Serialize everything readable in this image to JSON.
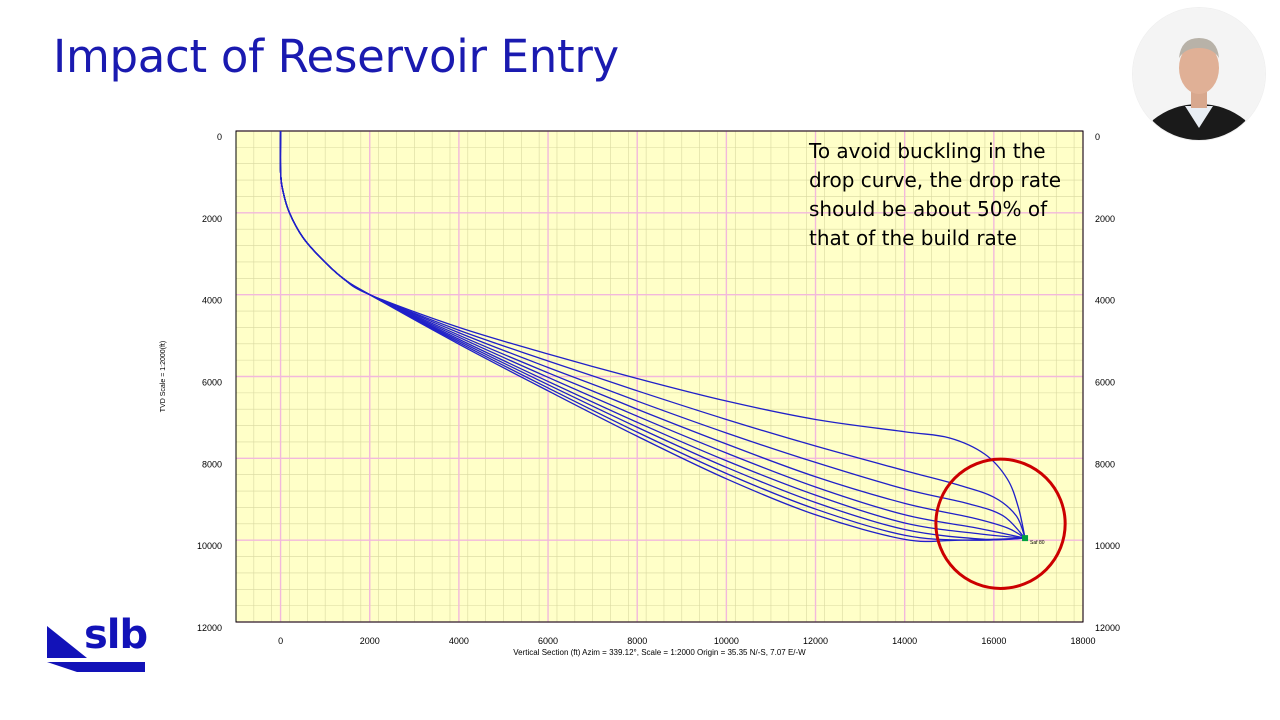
{
  "slide": {
    "title": "Impact of Reservoir Entry",
    "annotation_lines": [
      "To avoid buckling in the",
      "drop curve, the drop rate",
      "should be about 50% of",
      "that of the build rate"
    ],
    "logo_text": "slb",
    "presenter_label": "presenter-video"
  },
  "colors": {
    "title": "#1a1ab0",
    "plot_bg": "#ffffc8",
    "grid_minor": "#d8d8a0",
    "grid_major": "#f2b8dc",
    "curve": "#2020c8",
    "highlight_circle": "#cc0000",
    "logo": "#1212b8"
  },
  "chart_data": {
    "type": "line",
    "xlabel": "Vertical Section (ft) Azim = 339.12°, Scale = 1:2000  Origin = 35.35 N/-S, 7.07 E/-W",
    "ylabel": "TVD Scale = 1:2000(ft)",
    "xlim": [
      -1000,
      18000
    ],
    "ylim": [
      0,
      12000
    ],
    "y_inverted": true,
    "x_ticks": [
      0,
      2000,
      4000,
      6000,
      8000,
      10000,
      12000,
      14000,
      16000,
      18000
    ],
    "y_ticks": [
      0,
      2000,
      4000,
      6000,
      8000,
      10000,
      12000
    ],
    "grid": true,
    "target_label": "Saf 80",
    "target": {
      "x": 16700,
      "y": 9950
    },
    "highlight": {
      "cx": 16150,
      "cy": 9600,
      "r": 1450
    },
    "series": [
      {
        "points": [
          [
            0,
            0
          ],
          [
            0,
            1000
          ],
          [
            60,
            1500
          ],
          [
            200,
            2000
          ],
          [
            500,
            2600
          ],
          [
            900,
            3100
          ],
          [
            1400,
            3600
          ],
          [
            2000,
            4000
          ],
          [
            4000,
            4800
          ],
          [
            6000,
            5450
          ],
          [
            8000,
            6050
          ],
          [
            10000,
            6600
          ],
          [
            12000,
            7050
          ],
          [
            14000,
            7350
          ],
          [
            15000,
            7500
          ],
          [
            15800,
            7900
          ],
          [
            16300,
            8500
          ],
          [
            16550,
            9200
          ],
          [
            16700,
            9950
          ]
        ]
      },
      {
        "points": [
          [
            0,
            0
          ],
          [
            0,
            1000
          ],
          [
            60,
            1500
          ],
          [
            200,
            2000
          ],
          [
            500,
            2600
          ],
          [
            900,
            3100
          ],
          [
            1400,
            3600
          ],
          [
            2000,
            4000
          ],
          [
            4000,
            4870
          ],
          [
            6000,
            5620
          ],
          [
            8000,
            6350
          ],
          [
            10000,
            7050
          ],
          [
            12000,
            7700
          ],
          [
            14000,
            8300
          ],
          [
            15200,
            8650
          ],
          [
            16000,
            8950
          ],
          [
            16500,
            9400
          ],
          [
            16700,
            9950
          ]
        ]
      },
      {
        "points": [
          [
            0,
            0
          ],
          [
            0,
            1000
          ],
          [
            60,
            1500
          ],
          [
            200,
            2000
          ],
          [
            500,
            2600
          ],
          [
            900,
            3100
          ],
          [
            1400,
            3600
          ],
          [
            2000,
            4000
          ],
          [
            4000,
            4930
          ],
          [
            6000,
            5780
          ],
          [
            8000,
            6600
          ],
          [
            10000,
            7380
          ],
          [
            12000,
            8100
          ],
          [
            14000,
            8750
          ],
          [
            15400,
            9100
          ],
          [
            16200,
            9400
          ],
          [
            16700,
            9950
          ]
        ]
      },
      {
        "points": [
          [
            0,
            0
          ],
          [
            0,
            1000
          ],
          [
            60,
            1500
          ],
          [
            200,
            2000
          ],
          [
            500,
            2600
          ],
          [
            900,
            3100
          ],
          [
            1400,
            3600
          ],
          [
            2000,
            4000
          ],
          [
            4000,
            4990
          ],
          [
            6000,
            5910
          ],
          [
            8000,
            6800
          ],
          [
            10000,
            7650
          ],
          [
            12000,
            8450
          ],
          [
            14000,
            9100
          ],
          [
            15500,
            9450
          ],
          [
            16300,
            9700
          ],
          [
            16700,
            9950
          ]
        ]
      },
      {
        "points": [
          [
            0,
            0
          ],
          [
            0,
            1000
          ],
          [
            60,
            1500
          ],
          [
            200,
            2000
          ],
          [
            500,
            2600
          ],
          [
            900,
            3100
          ],
          [
            1400,
            3600
          ],
          [
            2000,
            4000
          ],
          [
            4000,
            5040
          ],
          [
            6000,
            6020
          ],
          [
            8000,
            6970
          ],
          [
            10000,
            7870
          ],
          [
            12000,
            8700
          ],
          [
            14000,
            9380
          ],
          [
            15600,
            9700
          ],
          [
            16700,
            9950
          ]
        ]
      },
      {
        "points": [
          [
            0,
            0
          ],
          [
            0,
            1000
          ],
          [
            60,
            1500
          ],
          [
            200,
            2000
          ],
          [
            500,
            2600
          ],
          [
            900,
            3100
          ],
          [
            1400,
            3600
          ],
          [
            2000,
            4000
          ],
          [
            4000,
            5090
          ],
          [
            6000,
            6120
          ],
          [
            8000,
            7120
          ],
          [
            10000,
            8060
          ],
          [
            12000,
            8900
          ],
          [
            14000,
            9580
          ],
          [
            15700,
            9850
          ],
          [
            16700,
            9950
          ]
        ]
      },
      {
        "points": [
          [
            0,
            0
          ],
          [
            0,
            1000
          ],
          [
            60,
            1500
          ],
          [
            200,
            2000
          ],
          [
            500,
            2600
          ],
          [
            900,
            3100
          ],
          [
            1400,
            3600
          ],
          [
            2000,
            4000
          ],
          [
            4000,
            5130
          ],
          [
            6000,
            6200
          ],
          [
            8000,
            7240
          ],
          [
            10000,
            8220
          ],
          [
            12000,
            9080
          ],
          [
            14000,
            9740
          ],
          [
            15800,
            9980
          ],
          [
            16700,
            9950
          ]
        ]
      },
      {
        "points": [
          [
            0,
            0
          ],
          [
            0,
            1000
          ],
          [
            60,
            1500
          ],
          [
            200,
            2000
          ],
          [
            500,
            2600
          ],
          [
            900,
            3100
          ],
          [
            1400,
            3600
          ],
          [
            2000,
            4000
          ],
          [
            4000,
            5170
          ],
          [
            6000,
            6280
          ],
          [
            8000,
            7360
          ],
          [
            10000,
            8370
          ],
          [
            12000,
            9240
          ],
          [
            14000,
            9880
          ],
          [
            15500,
            10000
          ],
          [
            16700,
            9950
          ]
        ]
      },
      {
        "points": [
          [
            0,
            0
          ],
          [
            0,
            1000
          ],
          [
            60,
            1500
          ],
          [
            200,
            2000
          ],
          [
            500,
            2600
          ],
          [
            900,
            3100
          ],
          [
            1400,
            3600
          ],
          [
            2000,
            4000
          ],
          [
            4000,
            5210
          ],
          [
            6000,
            6350
          ],
          [
            8000,
            7460
          ],
          [
            10000,
            8500
          ],
          [
            12000,
            9380
          ],
          [
            14000,
            9980
          ],
          [
            15200,
            10000
          ],
          [
            16700,
            9950
          ]
        ]
      }
    ]
  }
}
